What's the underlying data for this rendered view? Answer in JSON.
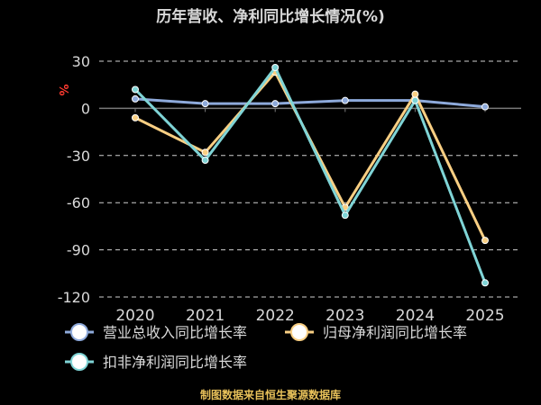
{
  "chart_data": {
    "type": "line",
    "title": "历年营收、净利同比增长情况(%)",
    "unit_label": "%",
    "categories": [
      "2020",
      "2021",
      "2022",
      "2023",
      "2024",
      "2025"
    ],
    "ylim": [
      -120,
      30
    ],
    "yticks": [
      30,
      0,
      -30,
      -60,
      -90,
      -120
    ],
    "grid": true,
    "legend_position": "bottom",
    "series": [
      {
        "name": "营业总收入同比增长率",
        "color": "#8eaadb",
        "values": [
          6,
          3,
          3,
          5,
          5,
          1
        ]
      },
      {
        "name": "归母净利润同比增长率",
        "color": "#f9cf83",
        "values": [
          -6,
          -28,
          23,
          -63,
          9,
          -84
        ]
      },
      {
        "name": "扣非净利润同比增长率",
        "color": "#7fd4d6",
        "values": [
          12,
          -33,
          26,
          -68,
          5,
          -111
        ]
      }
    ],
    "source": "制图数据来自恒生聚源数据库"
  }
}
